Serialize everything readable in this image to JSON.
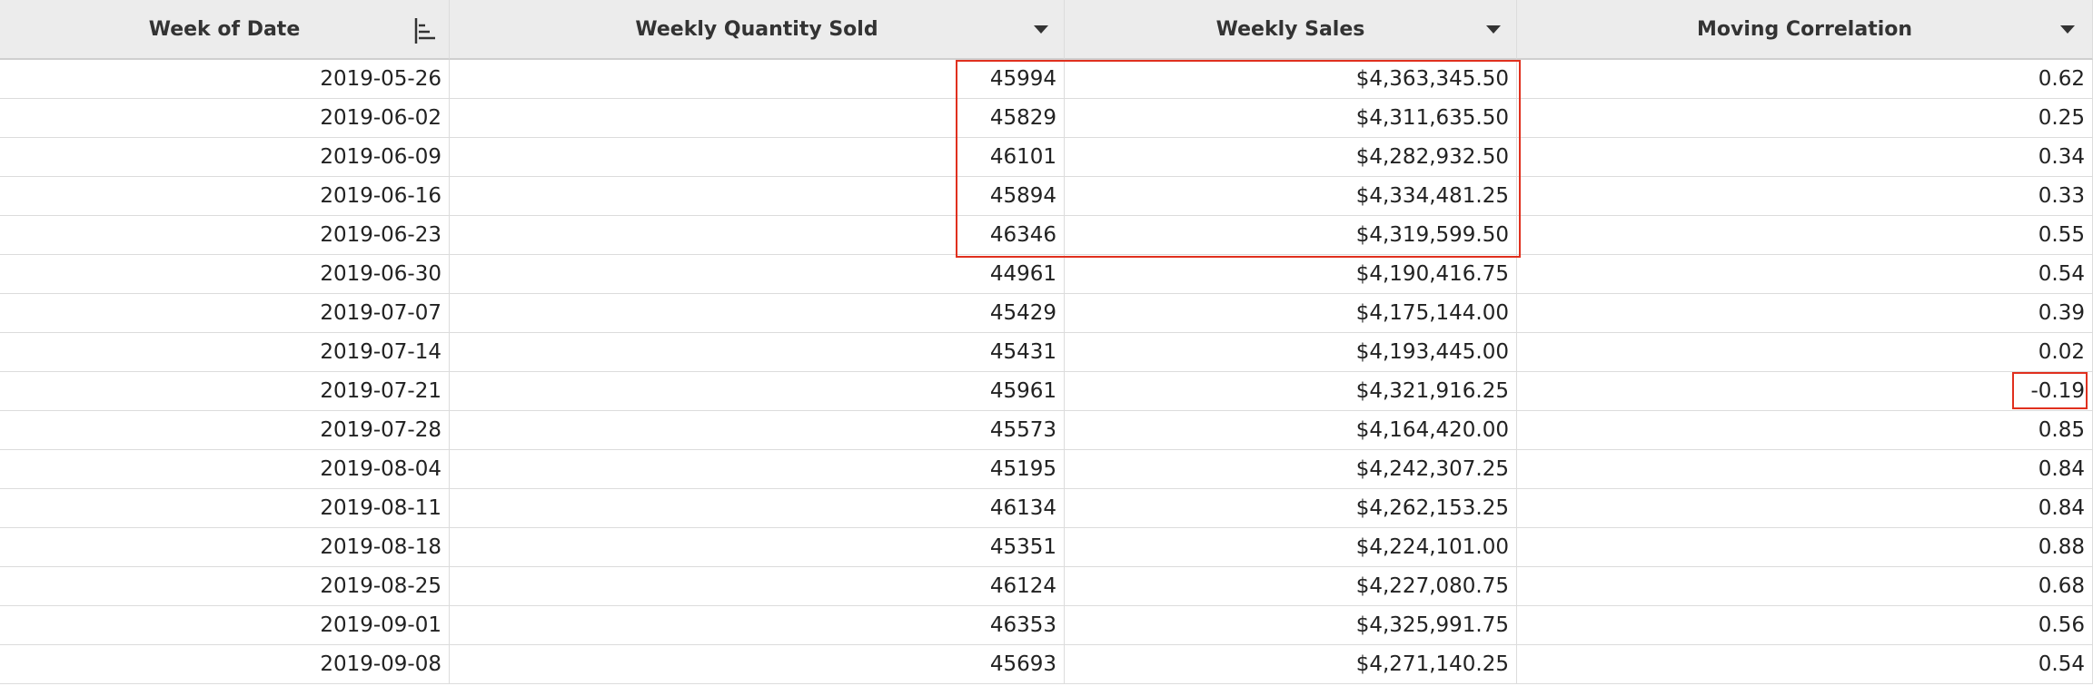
{
  "table": {
    "columns": [
      "Week of Date",
      "Weekly Quantity Sold",
      "Weekly Sales",
      "Moving Correlation"
    ],
    "rows": [
      [
        "2019-05-26",
        "45994",
        "$4,363,345.50",
        "0.62"
      ],
      [
        "2019-06-02",
        "45829",
        "$4,311,635.50",
        "0.25"
      ],
      [
        "2019-06-09",
        "46101",
        "$4,282,932.50",
        "0.34"
      ],
      [
        "2019-06-16",
        "45894",
        "$4,334,481.25",
        "0.33"
      ],
      [
        "2019-06-23",
        "46346",
        "$4,319,599.50",
        "0.55"
      ],
      [
        "2019-06-30",
        "44961",
        "$4,190,416.75",
        "0.54"
      ],
      [
        "2019-07-07",
        "45429",
        "$4,175,144.00",
        "0.39"
      ],
      [
        "2019-07-14",
        "45431",
        "$4,193,445.00",
        "0.02"
      ],
      [
        "2019-07-21",
        "45961",
        "$4,321,916.25",
        "-0.19"
      ],
      [
        "2019-07-28",
        "45573",
        "$4,164,420.00",
        "0.85"
      ],
      [
        "2019-08-04",
        "45195",
        "$4,242,307.25",
        "0.84"
      ],
      [
        "2019-08-11",
        "46134",
        "$4,262,153.25",
        "0.84"
      ],
      [
        "2019-08-18",
        "45351",
        "$4,224,101.00",
        "0.88"
      ],
      [
        "2019-08-25",
        "46124",
        "$4,227,080.75",
        "0.68"
      ],
      [
        "2019-09-01",
        "46353",
        "$4,325,991.75",
        "0.56"
      ],
      [
        "2019-09-08",
        "45693",
        "$4,271,140.25",
        "0.54"
      ]
    ]
  }
}
